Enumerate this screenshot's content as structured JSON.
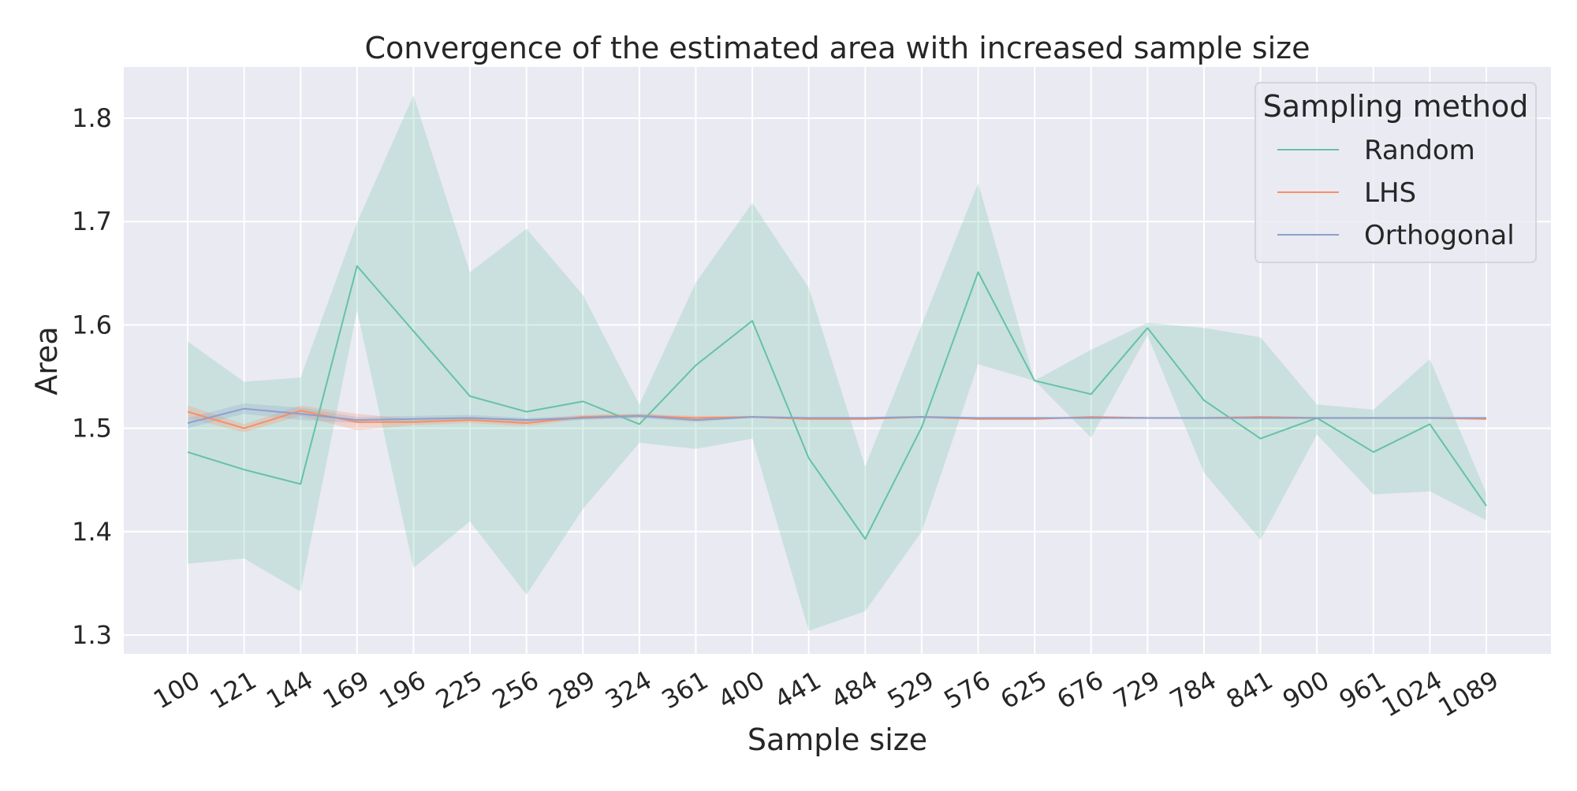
{
  "chart_data": {
    "type": "line",
    "title": "Convergence of the estimated area with increased sample size",
    "xlabel": "Sample size",
    "ylabel": "Area",
    "categories": [
      "100",
      "121",
      "144",
      "169",
      "196",
      "225",
      "256",
      "289",
      "324",
      "361",
      "400",
      "441",
      "484",
      "529",
      "576",
      "625",
      "676",
      "729",
      "784",
      "841",
      "900",
      "961",
      "1024",
      "1089"
    ],
    "y_ticks": [
      1.3,
      1.4,
      1.5,
      1.6,
      1.7,
      1.8
    ],
    "ylim": [
      1.28,
      1.85
    ],
    "grid": true,
    "legend": {
      "title": "Sampling method",
      "placement": "top-right"
    },
    "series": [
      {
        "name": "Random",
        "color": "#66c2a5",
        "values": [
          1.477,
          1.46,
          1.446,
          1.657,
          1.594,
          1.531,
          1.516,
          1.526,
          1.504,
          1.561,
          1.604,
          1.471,
          1.393,
          1.501,
          1.651,
          1.546,
          1.533,
          1.597,
          1.527,
          1.49,
          1.51,
          1.477,
          1.504,
          1.425
        ],
        "lower": [
          1.369,
          1.374,
          1.342,
          1.614,
          1.365,
          1.41,
          1.339,
          1.422,
          1.486,
          1.48,
          1.49,
          1.304,
          1.323,
          1.4,
          1.562,
          1.546,
          1.491,
          1.59,
          1.457,
          1.392,
          1.494,
          1.436,
          1.439,
          1.411
        ],
        "upper": [
          1.584,
          1.545,
          1.549,
          1.699,
          1.822,
          1.651,
          1.693,
          1.629,
          1.523,
          1.641,
          1.718,
          1.636,
          1.463,
          1.6,
          1.737,
          1.546,
          1.576,
          1.602,
          1.597,
          1.588,
          1.523,
          1.518,
          1.567,
          1.437
        ]
      },
      {
        "name": "LHS",
        "color": "#fc8d62",
        "values": [
          1.516,
          1.5,
          1.517,
          1.506,
          1.506,
          1.508,
          1.505,
          1.511,
          1.512,
          1.51,
          1.511,
          1.509,
          1.509,
          1.511,
          1.509,
          1.509,
          1.511,
          1.51,
          1.51,
          1.511,
          1.51,
          1.51,
          1.51,
          1.509
        ],
        "lower": [
          1.51,
          1.496,
          1.512,
          1.498,
          1.503,
          1.505,
          1.502,
          1.509,
          1.51,
          1.508,
          1.51,
          1.508,
          1.508,
          1.51,
          1.508,
          1.508,
          1.51,
          1.509,
          1.509,
          1.51,
          1.509,
          1.509,
          1.509,
          1.508
        ],
        "upper": [
          1.522,
          1.504,
          1.522,
          1.514,
          1.509,
          1.511,
          1.508,
          1.513,
          1.514,
          1.512,
          1.512,
          1.51,
          1.51,
          1.512,
          1.51,
          1.51,
          1.512,
          1.511,
          1.511,
          1.512,
          1.511,
          1.511,
          1.511,
          1.51
        ]
      },
      {
        "name": "Orthogonal",
        "color": "#8da0cb",
        "values": [
          1.505,
          1.519,
          1.514,
          1.508,
          1.509,
          1.51,
          1.508,
          1.51,
          1.512,
          1.508,
          1.511,
          1.51,
          1.51,
          1.511,
          1.51,
          1.51,
          1.51,
          1.51,
          1.51,
          1.51,
          1.51,
          1.51,
          1.51,
          1.51
        ],
        "lower": [
          1.5,
          1.514,
          1.508,
          1.505,
          1.506,
          1.507,
          1.506,
          1.508,
          1.51,
          1.506,
          1.51,
          1.509,
          1.509,
          1.51,
          1.509,
          1.509,
          1.509,
          1.509,
          1.509,
          1.509,
          1.509,
          1.509,
          1.509,
          1.509
        ],
        "upper": [
          1.51,
          1.524,
          1.52,
          1.511,
          1.512,
          1.513,
          1.51,
          1.512,
          1.514,
          1.51,
          1.512,
          1.511,
          1.511,
          1.512,
          1.511,
          1.511,
          1.511,
          1.511,
          1.511,
          1.511,
          1.511,
          1.511,
          1.511,
          1.511
        ]
      }
    ]
  }
}
